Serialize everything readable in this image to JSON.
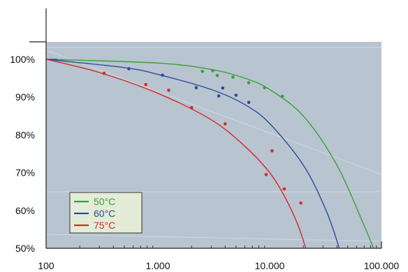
{
  "chart_data": {
    "type": "scatter",
    "title": "",
    "xlabel": "",
    "ylabel": "",
    "x_scale": "log",
    "xlim": [
      100,
      100000
    ],
    "ylim": [
      50,
      100
    ],
    "x_ticks": [
      100,
      1000,
      10000,
      100000
    ],
    "x_tick_labels": [
      "100",
      "1.000",
      "10.000",
      "100.000"
    ],
    "y_ticks": [
      100,
      90,
      80,
      70,
      60,
      50
    ],
    "y_tick_labels": [
      "100%",
      "90%",
      "80%",
      "70%",
      "60%",
      "50%"
    ],
    "legend_position": "bottom-left",
    "plot_background": "#b8c4d0",
    "series": [
      {
        "name": "50°C",
        "color": "#3a9e3a",
        "points": [
          [
            2500,
            96.8
          ],
          [
            3100,
            97.0
          ],
          [
            3400,
            95.7
          ],
          [
            4700,
            95.3
          ],
          [
            6500,
            93.8
          ],
          [
            9000,
            92.5
          ],
          [
            13000,
            90.2
          ]
        ],
        "curve": [
          [
            100,
            100
          ],
          [
            1000,
            99.0
          ],
          [
            3000,
            97.3
          ],
          [
            6000,
            95.0
          ],
          [
            10000,
            92.0
          ],
          [
            20000,
            85.0
          ],
          [
            40000,
            72.0
          ],
          [
            70000,
            56.0
          ],
          [
            85000,
            50.0
          ]
        ]
      },
      {
        "name": "60°C",
        "color": "#2d4b9b",
        "points": [
          [
            550,
            97.5
          ],
          [
            1100,
            95.8
          ],
          [
            2200,
            92.5
          ],
          [
            3500,
            90.3
          ],
          [
            3800,
            92.4
          ],
          [
            5000,
            90.5
          ],
          [
            6500,
            88.6
          ]
        ],
        "curve": [
          [
            100,
            100
          ],
          [
            500,
            97.8
          ],
          [
            1000,
            96.0
          ],
          [
            3000,
            92.0
          ],
          [
            6000,
            88.0
          ],
          [
            10000,
            83.0
          ],
          [
            20000,
            72.0
          ],
          [
            32000,
            60.0
          ],
          [
            42000,
            50.0
          ]
        ]
      },
      {
        "name": "75°C",
        "color": "#d42a2a",
        "points": [
          [
            330,
            96.3
          ],
          [
            780,
            93.3
          ],
          [
            1250,
            91.8
          ],
          [
            2000,
            87.2
          ],
          [
            4000,
            82.9
          ],
          [
            9300,
            69.5
          ],
          [
            10500,
            75.8
          ],
          [
            13500,
            65.7
          ],
          [
            19000,
            62.0
          ]
        ],
        "curve": [
          [
            100,
            100
          ],
          [
            300,
            96.5
          ],
          [
            1000,
            91.0
          ],
          [
            3000,
            84.0
          ],
          [
            6000,
            77.0
          ],
          [
            10000,
            70.0
          ],
          [
            14000,
            63.0
          ],
          [
            18000,
            56.0
          ],
          [
            21000,
            50.0
          ]
        ]
      }
    ]
  }
}
